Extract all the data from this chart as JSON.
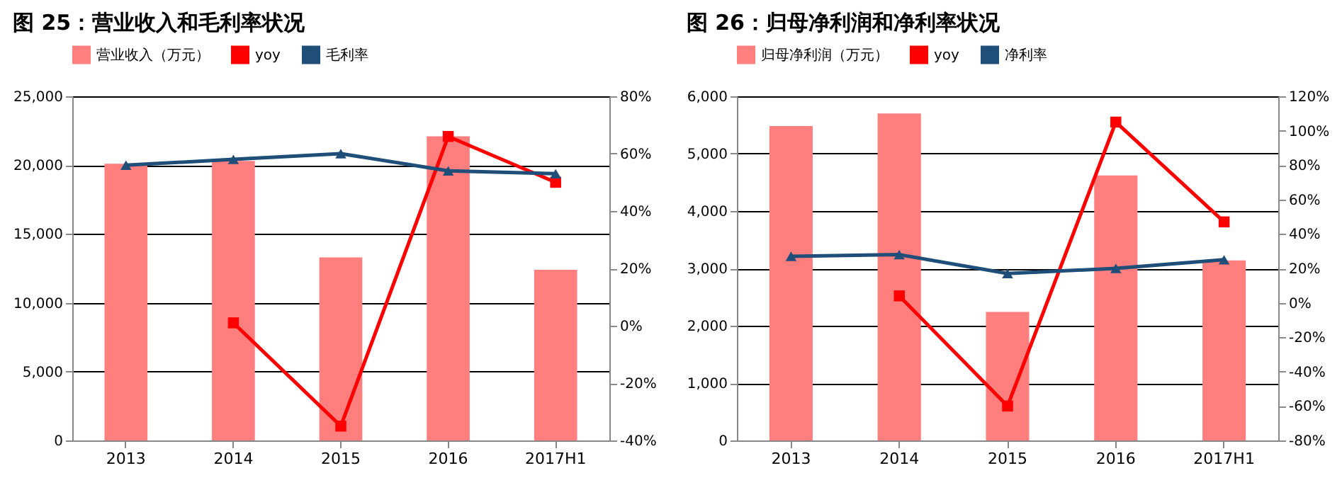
{
  "chart_data": [
    {
      "type": "bar",
      "title": "图 25：营业收入和毛利率状况",
      "categories": [
        "2013",
        "2014",
        "2015",
        "2016",
        "2017H1"
      ],
      "series": [
        {
          "name": "营业收入（万元）",
          "type": "bar",
          "color": "#ff7f7f",
          "values": [
            20100,
            20300,
            13300,
            22100,
            12400
          ]
        },
        {
          "name": "yoy",
          "type": "line",
          "axis": "y2",
          "color": "#ff0000",
          "marker": "square",
          "values": [
            null,
            1,
            -35,
            66,
            50
          ]
        },
        {
          "name": "毛利率",
          "type": "line",
          "axis": "y2",
          "color": "#1f4e79",
          "marker": "triangle",
          "values": [
            56,
            58,
            60,
            54,
            53
          ]
        }
      ],
      "ylim": [
        0,
        25000
      ],
      "yticks": [
        0,
        {
          "value": 5000,
          "label": "5,000"
        },
        {
          "value": 10000,
          "label": "10,000"
        },
        {
          "value": 15000,
          "label": "15,000"
        },
        {
          "value": 20000,
          "label": "20,000"
        },
        {
          "value": 25000,
          "label": "25,000"
        }
      ],
      "y2lim": [
        -40,
        80
      ],
      "y2ticks": [
        {
          "value": -40,
          "label": "-40%"
        },
        {
          "value": -20,
          "label": "-20%"
        },
        {
          "value": 0,
          "label": "0%"
        },
        {
          "value": 20,
          "label": "20%"
        },
        {
          "value": 40,
          "label": "40%"
        },
        {
          "value": 60,
          "label": "60%"
        },
        {
          "value": 80,
          "label": "80%"
        }
      ],
      "grid": "y",
      "legend": "top"
    },
    {
      "type": "bar",
      "title": "图 26：归母净利润和净利率状况",
      "categories": [
        "2013",
        "2014",
        "2015",
        "2016",
        "2017H1"
      ],
      "series": [
        {
          "name": "归母净利润（万元）",
          "type": "bar",
          "color": "#ff7f7f",
          "values": [
            5480,
            5700,
            2240,
            4620,
            3140
          ]
        },
        {
          "name": "yoy",
          "type": "line",
          "axis": "y2",
          "color": "#ff0000",
          "marker": "square",
          "values": [
            null,
            4,
            -60,
            105,
            47
          ]
        },
        {
          "name": "净利率",
          "type": "line",
          "axis": "y2",
          "color": "#1f4e79",
          "marker": "triangle",
          "values": [
            27,
            28,
            17,
            20,
            25
          ]
        }
      ],
      "ylim": [
        0,
        6000
      ],
      "yticks": [
        0,
        {
          "value": 1000,
          "label": "1,000"
        },
        {
          "value": 2000,
          "label": "2,000"
        },
        {
          "value": 3000,
          "label": "3,000"
        },
        {
          "value": 4000,
          "label": "4,000"
        },
        {
          "value": 5000,
          "label": "5,000"
        },
        {
          "value": 6000,
          "label": "6,000"
        }
      ],
      "y2lim": [
        -80,
        120
      ],
      "y2ticks": [
        {
          "value": -80,
          "label": "-80%"
        },
        {
          "value": -60,
          "label": "-60%"
        },
        {
          "value": -40,
          "label": "-40%"
        },
        {
          "value": -20,
          "label": "-20%"
        },
        {
          "value": 0,
          "label": "0%"
        },
        {
          "value": 20,
          "label": "20%"
        },
        {
          "value": 40,
          "label": "40%"
        },
        {
          "value": 60,
          "label": "60%"
        },
        {
          "value": 80,
          "label": "80%"
        },
        {
          "value": 100,
          "label": "100%"
        },
        {
          "value": 120,
          "label": "120%"
        }
      ],
      "grid": "y",
      "legend": "top"
    }
  ]
}
